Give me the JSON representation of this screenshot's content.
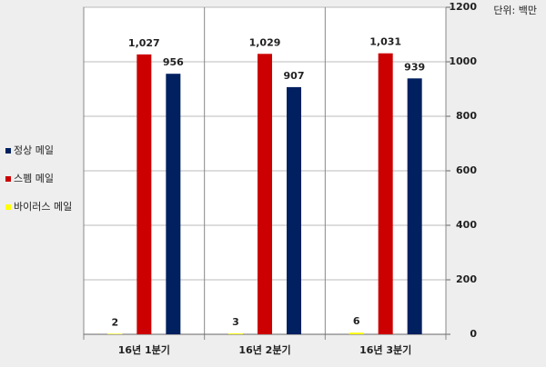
{
  "chart_data": {
    "type": "bar",
    "unit_label": "단위: 백만",
    "categories": [
      "16년 1분기",
      "16년 2분기",
      "16년 3분기"
    ],
    "series": [
      {
        "name": "바이러스 메일",
        "color": "#ffff00",
        "values": [
          2,
          3,
          6
        ]
      },
      {
        "name": "스펨 메일",
        "color": "#cc0000",
        "values": [
          1027,
          1029,
          1031
        ],
        "value_labels": [
          "1,027",
          "1,029",
          "1,031"
        ]
      },
      {
        "name": "정상 메일",
        "color": "#002060",
        "values": [
          956,
          907,
          939
        ]
      }
    ],
    "ylim": [
      0,
      1200
    ],
    "yticks": [
      0,
      200,
      400,
      600,
      800,
      1000,
      1200
    ],
    "grid": true
  }
}
